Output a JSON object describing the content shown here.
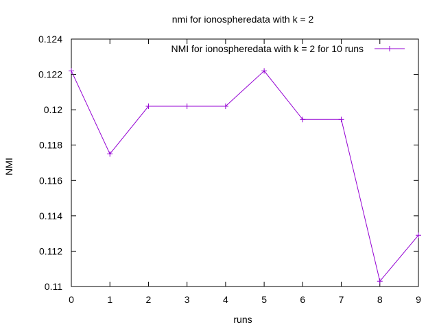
{
  "chart_data": {
    "type": "line",
    "title": "nmi for ionospheredata with k = 2",
    "xlabel": "runs",
    "ylabel": "NMI",
    "xlim": [
      0,
      9
    ],
    "ylim": [
      0.11,
      0.124
    ],
    "x_ticks": [
      "0",
      "1",
      "2",
      "3",
      "4",
      "5",
      "6",
      "7",
      "8",
      "9"
    ],
    "y_ticks": [
      "0.11",
      "0.112",
      "0.114",
      "0.116",
      "0.118",
      "0.12",
      "0.122",
      "0.124"
    ],
    "legend_position": "top-right",
    "grid": false,
    "series": [
      {
        "name": "NMI for ionospheredata with k = 2 for 10 runs",
        "color": "#9400d3",
        "marker": "plus",
        "x": [
          0,
          1,
          2,
          3,
          4,
          5,
          6,
          7,
          8,
          9
        ],
        "values": [
          0.1222,
          0.1175,
          0.1202,
          0.1202,
          0.1202,
          0.1222,
          0.11945,
          0.11945,
          0.1103,
          0.1129
        ]
      }
    ]
  }
}
